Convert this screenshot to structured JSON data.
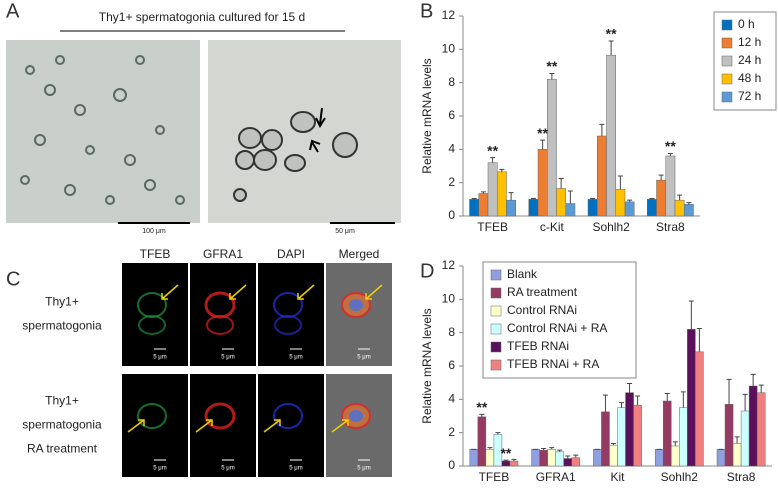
{
  "panel_labels": [
    "A",
    "B",
    "C",
    "D"
  ],
  "panel_a": {
    "title": "Thy1+ spermatogonia cultured for 15 d",
    "scale_left": "100 μm",
    "scale_right": "50 μm"
  },
  "panel_c": {
    "columns": [
      "TFEB",
      "GFRA1",
      "DAPI",
      "Merged"
    ],
    "rows": [
      [
        "Thy1+",
        "spermatogonia"
      ],
      [
        "Thy1+",
        "spermatogonia",
        "RA treatment"
      ]
    ],
    "scale_label": "5 μm"
  },
  "chart_data": [
    {
      "type": "bar",
      "y_label": "Relative mRNA levels",
      "legend": "upper right",
      "grid": false,
      "categories": [
        "TFEB",
        "c-Kit",
        "Sohlh2",
        "Stra8"
      ],
      "ylim": [
        0,
        12
      ],
      "yticks": [
        0,
        2,
        4,
        6,
        8,
        10,
        12
      ],
      "series": [
        {
          "name": "0 h",
          "color": "#0070c0",
          "values": [
            1,
            1,
            1,
            1
          ],
          "errors": [
            0.05,
            0.05,
            0.05,
            0.05
          ]
        },
        {
          "name": "12 h",
          "color": "#ed7d31",
          "values": [
            1.35,
            4.0,
            4.8,
            2.15
          ],
          "errors": [
            0.1,
            0.55,
            0.7,
            0.3
          ]
        },
        {
          "name": "24 h",
          "color": "#c0c0c0",
          "values": [
            3.2,
            8.2,
            9.65,
            3.6
          ],
          "errors": [
            0.3,
            0.35,
            0.85,
            0.15
          ]
        },
        {
          "name": "48 h",
          "color": "#ffc000",
          "values": [
            2.65,
            1.65,
            1.6,
            0.95
          ],
          "errors": [
            0.15,
            0.6,
            0.8,
            0.3
          ]
        },
        {
          "name": "72 h",
          "color": "#5b9bd5",
          "values": [
            0.95,
            0.75,
            0.85,
            0.7
          ],
          "errors": [
            0.45,
            0.75,
            0.1,
            0.1
          ]
        }
      ],
      "annotations": [
        {
          "text": "**",
          "category": 0,
          "series": 2
        },
        {
          "text": "**",
          "category": 1,
          "series": 1
        },
        {
          "text": "**",
          "category": 1,
          "series": 2
        },
        {
          "text": "**",
          "category": 2,
          "series": 2
        },
        {
          "text": "**",
          "category": 3,
          "series": 2
        }
      ]
    },
    {
      "type": "bar",
      "y_label": "Relative mRNA levels",
      "legend": "upper left",
      "grid": false,
      "categories": [
        "TFEB",
        "GFRA1",
        "Kit",
        "Sohlh2",
        "Stra8"
      ],
      "ylim": [
        0,
        12
      ],
      "yticks": [
        0,
        2,
        4,
        6,
        8,
        10,
        12
      ],
      "series": [
        {
          "name": "Blank",
          "color": "#8f9fe0",
          "values": [
            1,
            1,
            1,
            1,
            1
          ],
          "errors": [
            0,
            0,
            0,
            0,
            0
          ]
        },
        {
          "name": "RA treatment",
          "color": "#953a63",
          "values": [
            2.95,
            0.95,
            3.25,
            3.9,
            3.7
          ],
          "errors": [
            0.15,
            0.1,
            1.0,
            0.45,
            1.5
          ]
        },
        {
          "name": "Control RNAi",
          "color": "#ffffcc",
          "values": [
            1.0,
            1.0,
            1.25,
            1.2,
            1.35
          ],
          "errors": [
            0.1,
            0.1,
            0.1,
            0.25,
            0.4
          ]
        },
        {
          "name": "Control RNAi + RA",
          "color": "#ccffff",
          "values": [
            1.9,
            0.85,
            3.5,
            3.5,
            3.3
          ],
          "errors": [
            0.1,
            0.1,
            0.3,
            0.95,
            1.0
          ]
        },
        {
          "name": "TFEB RNAi",
          "color": "#5a105a",
          "values": [
            0.3,
            0.45,
            4.4,
            8.2,
            4.8
          ],
          "errors": [
            0.05,
            0.15,
            0.55,
            1.7,
            0.7
          ]
        },
        {
          "name": "TFEB RNAi + RA",
          "color": "#f08080",
          "values": [
            0.3,
            0.5,
            3.65,
            6.85,
            4.4
          ],
          "errors": [
            0.1,
            0.15,
            0.55,
            1.4,
            0.45
          ]
        }
      ],
      "annotations": [
        {
          "text": "**",
          "category": 0,
          "series": 1
        },
        {
          "text": "**",
          "category": 0,
          "series": 4
        }
      ]
    }
  ]
}
